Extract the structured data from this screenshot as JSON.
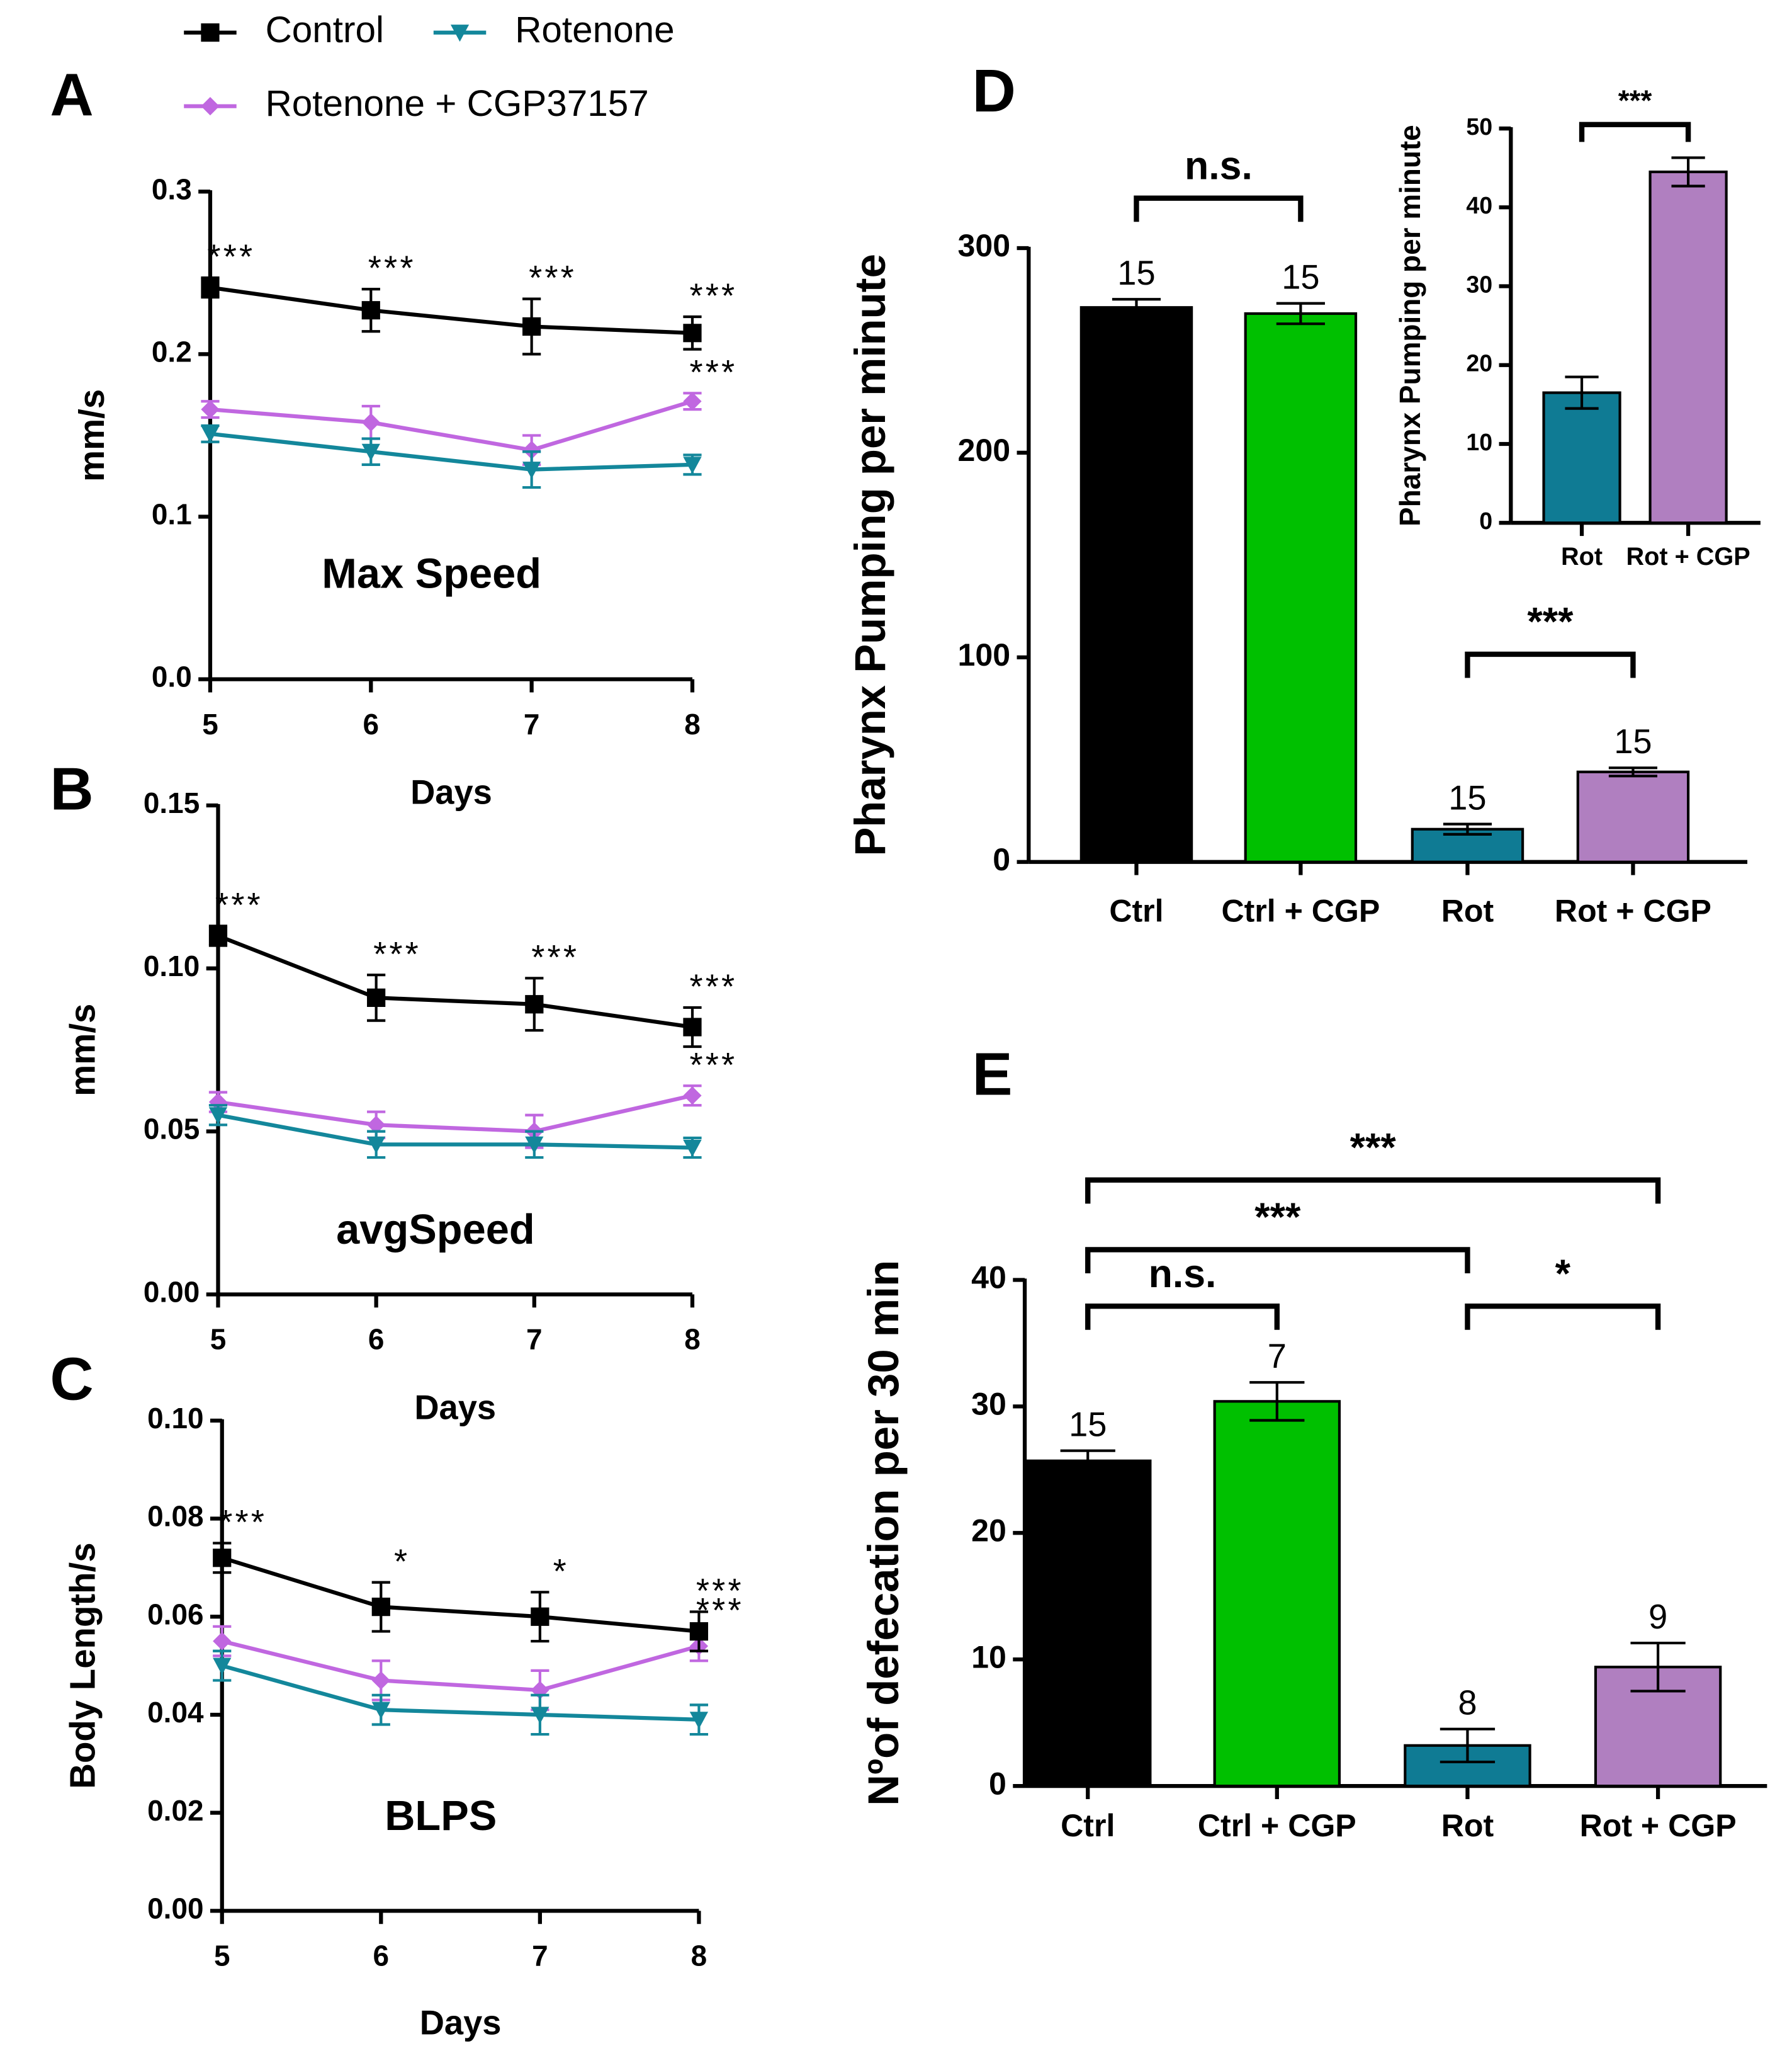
{
  "chart_data": [
    {
      "type": "line",
      "panel": "A",
      "title": "Max Speed",
      "x_label": "Days",
      "y_label": "mm/s",
      "x": [
        5,
        6,
        7,
        8
      ],
      "xlim": [
        5,
        8
      ],
      "xticks": [
        5,
        6,
        7,
        8
      ],
      "ylim": [
        0,
        0.3
      ],
      "yticks": [
        {
          "value": 0,
          "label": "0.0"
        },
        0.1,
        0.2,
        0.3
      ],
      "series": [
        {
          "name": "Control",
          "color": "#000000",
          "marker": "square",
          "values": [
            0.241,
            0.227,
            0.217,
            0.213
          ],
          "errors": [
            0.006,
            0.013,
            0.017,
            0.01
          ],
          "annotations": [
            "***",
            "***",
            "***",
            "***"
          ]
        },
        {
          "name": "Rotenone",
          "color": "#13879b",
          "marker": "triangle-down",
          "values": [
            0.151,
            0.14,
            0.129,
            0.132
          ],
          "errors": [
            0.005,
            0.008,
            0.011,
            0.006
          ]
        },
        {
          "name": "Rotenone + CGP37157",
          "color": "#c067e0",
          "marker": "diamond",
          "values": [
            0.166,
            0.158,
            0.141,
            0.171
          ],
          "errors": [
            0.005,
            0.01,
            0.009,
            0.005
          ],
          "annotations": [
            null,
            null,
            null,
            "***"
          ]
        }
      ]
    },
    {
      "type": "line",
      "panel": "B",
      "title": "avgSpeed",
      "x_label": "Days",
      "y_label": "mm/s",
      "x": [
        5,
        6,
        7,
        8
      ],
      "xlim": [
        5,
        8
      ],
      "xticks": [
        5,
        6,
        7,
        8
      ],
      "ylim": [
        0,
        0.15
      ],
      "yticks": [
        {
          "value": 0,
          "label": "0.00"
        },
        0.05,
        {
          "value": 0.1,
          "label": "0.10"
        },
        0.15
      ],
      "series": [
        {
          "color": "#000000",
          "marker": "square",
          "values": [
            0.11,
            0.091,
            0.089,
            0.082
          ],
          "errors": [
            0.003,
            0.007,
            0.008,
            0.006
          ],
          "annotations": [
            "***",
            "***",
            "***",
            "***"
          ]
        },
        {
          "color": "#13879b",
          "marker": "triangle-down",
          "values": [
            0.055,
            0.046,
            0.046,
            0.045
          ],
          "errors": [
            0.003,
            0.004,
            0.004,
            0.003
          ]
        },
        {
          "color": "#c067e0",
          "marker": "diamond",
          "values": [
            0.059,
            0.052,
            0.05,
            0.061
          ],
          "errors": [
            0.003,
            0.004,
            0.005,
            0.003
          ],
          "annotations": [
            null,
            null,
            null,
            "***"
          ]
        }
      ]
    },
    {
      "type": "line",
      "panel": "C",
      "title": "BLPS",
      "x_label": "Days",
      "y_label": "Body Length/s",
      "x": [
        5,
        6,
        7,
        8
      ],
      "xlim": [
        5,
        8
      ],
      "xticks": [
        5,
        6,
        7,
        8
      ],
      "ylim": [
        0,
        0.1
      ],
      "yticks": [
        {
          "value": 0,
          "label": "0.00"
        },
        0.02,
        0.04,
        0.06,
        0.08,
        {
          "value": 0.1,
          "label": "0.10"
        }
      ],
      "series": [
        {
          "color": "#000000",
          "marker": "square",
          "values": [
            0.072,
            0.062,
            0.06,
            0.057
          ],
          "errors": [
            0.003,
            0.005,
            0.005,
            0.004
          ],
          "annotations": [
            "***",
            "*",
            "*",
            "***"
          ]
        },
        {
          "color": "#13879b",
          "marker": "triangle-down",
          "values": [
            0.05,
            0.041,
            0.04,
            0.039
          ],
          "errors": [
            0.003,
            0.003,
            0.004,
            0.003
          ]
        },
        {
          "color": "#c067e0",
          "marker": "diamond",
          "values": [
            0.055,
            0.047,
            0.045,
            0.054
          ],
          "errors": [
            0.003,
            0.004,
            0.004,
            0.003
          ],
          "annotations": [
            null,
            null,
            null,
            "***"
          ]
        }
      ]
    },
    {
      "type": "bar",
      "panel": "D",
      "y_label": "Pharynx Pumping per minute",
      "categories": [
        "Ctrl",
        "Ctrl + CGP",
        "Rot",
        "Rot + CGP"
      ],
      "values": [
        271,
        268,
        16,
        44
      ],
      "errors": [
        4,
        5,
        2.5,
        2
      ],
      "counts": [
        15,
        15,
        15,
        15
      ],
      "colors": [
        "#000000",
        "#00c000",
        "#0f7b94",
        "#b07fc0"
      ],
      "ylim": [
        0,
        300
      ],
      "yticks": [
        0,
        100,
        200,
        300
      ],
      "comparisons": [
        {
          "from": 0,
          "to": 1,
          "label": "n.s."
        },
        {
          "from": 2,
          "to": 3,
          "label": "***"
        }
      ]
    },
    {
      "type": "bar",
      "y_label": "Pharynx Pumping per minute",
      "categories": [
        "Rot",
        "Rot + CGP"
      ],
      "values": [
        16.5,
        44.5
      ],
      "errors": [
        2,
        1.8
      ],
      "colors": [
        "#0f7b94",
        "#b07fc0"
      ],
      "ylim": [
        0,
        50
      ],
      "yticks": [
        0,
        10,
        20,
        30,
        40,
        50
      ],
      "comparisons": [
        {
          "from": 0,
          "to": 1,
          "label": "***"
        }
      ]
    },
    {
      "type": "bar",
      "panel": "E",
      "y_label": "Nºof defecation per 30 min",
      "categories": [
        "Ctrl",
        "Ctrl + CGP",
        "Rot",
        "Rot + CGP"
      ],
      "values": [
        25.7,
        30.4,
        3.2,
        9.4
      ],
      "errors": [
        0.8,
        1.5,
        1.3,
        1.9
      ],
      "counts": [
        15,
        7,
        8,
        9
      ],
      "colors": [
        "#000000",
        "#00c000",
        "#0f7b94",
        "#b07fc0"
      ],
      "ylim": [
        0,
        40
      ],
      "yticks": [
        0,
        10,
        20,
        30,
        40
      ],
      "comparisons": [
        {
          "from": 0,
          "to": 3,
          "label": "***"
        },
        {
          "from": 0,
          "to": 2,
          "label": "***"
        },
        {
          "from": 0,
          "to": 1,
          "label": "n.s."
        },
        {
          "from": 2,
          "to": 3,
          "label": "*"
        }
      ]
    }
  ]
}
